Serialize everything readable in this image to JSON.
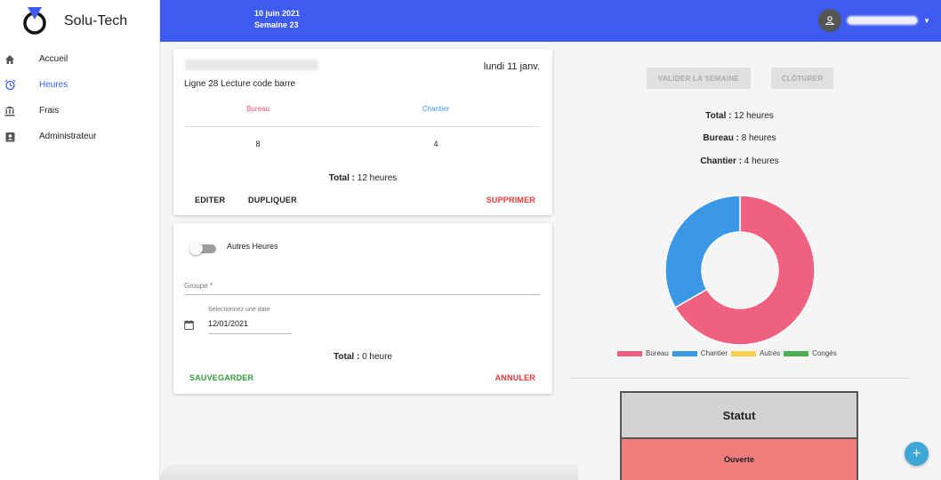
{
  "sidebar": {
    "brand": "Solu-Tech",
    "items": [
      {
        "label": "Accueil",
        "icon": "home-icon"
      },
      {
        "label": "Heures",
        "icon": "alarm-clock-icon",
        "active": true
      },
      {
        "label": "Frais",
        "icon": "bank-icon"
      },
      {
        "label": "Administrateur",
        "icon": "badge-icon"
      }
    ]
  },
  "header": {
    "date": "10 juin 2021",
    "week": "Semaine 23",
    "user_icon": "account-icon",
    "bg_color": "#3d5af1"
  },
  "entry_card": {
    "date": "lundi 11 janv.",
    "project": "Ligne 28 Lecture code barre",
    "columns": [
      {
        "label": "Bureau",
        "value": "8"
      },
      {
        "label": "Chantier",
        "value": "4"
      }
    ],
    "total_label": "Total :",
    "total_value": "12 heures",
    "edit_label": "EDITER",
    "duplicate_label": "DUPLIQUER",
    "delete_label": "SUPPRIMER"
  },
  "new_card": {
    "toggle_label": "Autres Heures",
    "toggle_on": false,
    "group_label": "Groupe *",
    "date_label": "Sélectionnez une date",
    "date_value": "12/01/2021",
    "total_label": "Total :",
    "total_value": "0 heure",
    "save_label": "SAUVEGARDER",
    "cancel_label": "ANNULER"
  },
  "summary": {
    "validate_label": "VALIDER LA SEMAINE",
    "close_label": "CLÔTURER",
    "total_label": "Total :",
    "total_value": "12 heures",
    "bureau_label": "Bureau :",
    "bureau_value": "8 heures",
    "chantier_label": "Chantier :",
    "chantier_value": "4 heures"
  },
  "chart_data": {
    "type": "pie",
    "categories": [
      "Bureau",
      "Chantier",
      "Autres",
      "Congés"
    ],
    "values": [
      8,
      4,
      0,
      0
    ],
    "colors": [
      "#f0607f",
      "#3a98e6",
      "#f7cf4a",
      "#4caf50"
    ],
    "legend": "bottom"
  },
  "status": {
    "title": "Statut",
    "value": "Ouverte"
  },
  "fab_label": "+"
}
